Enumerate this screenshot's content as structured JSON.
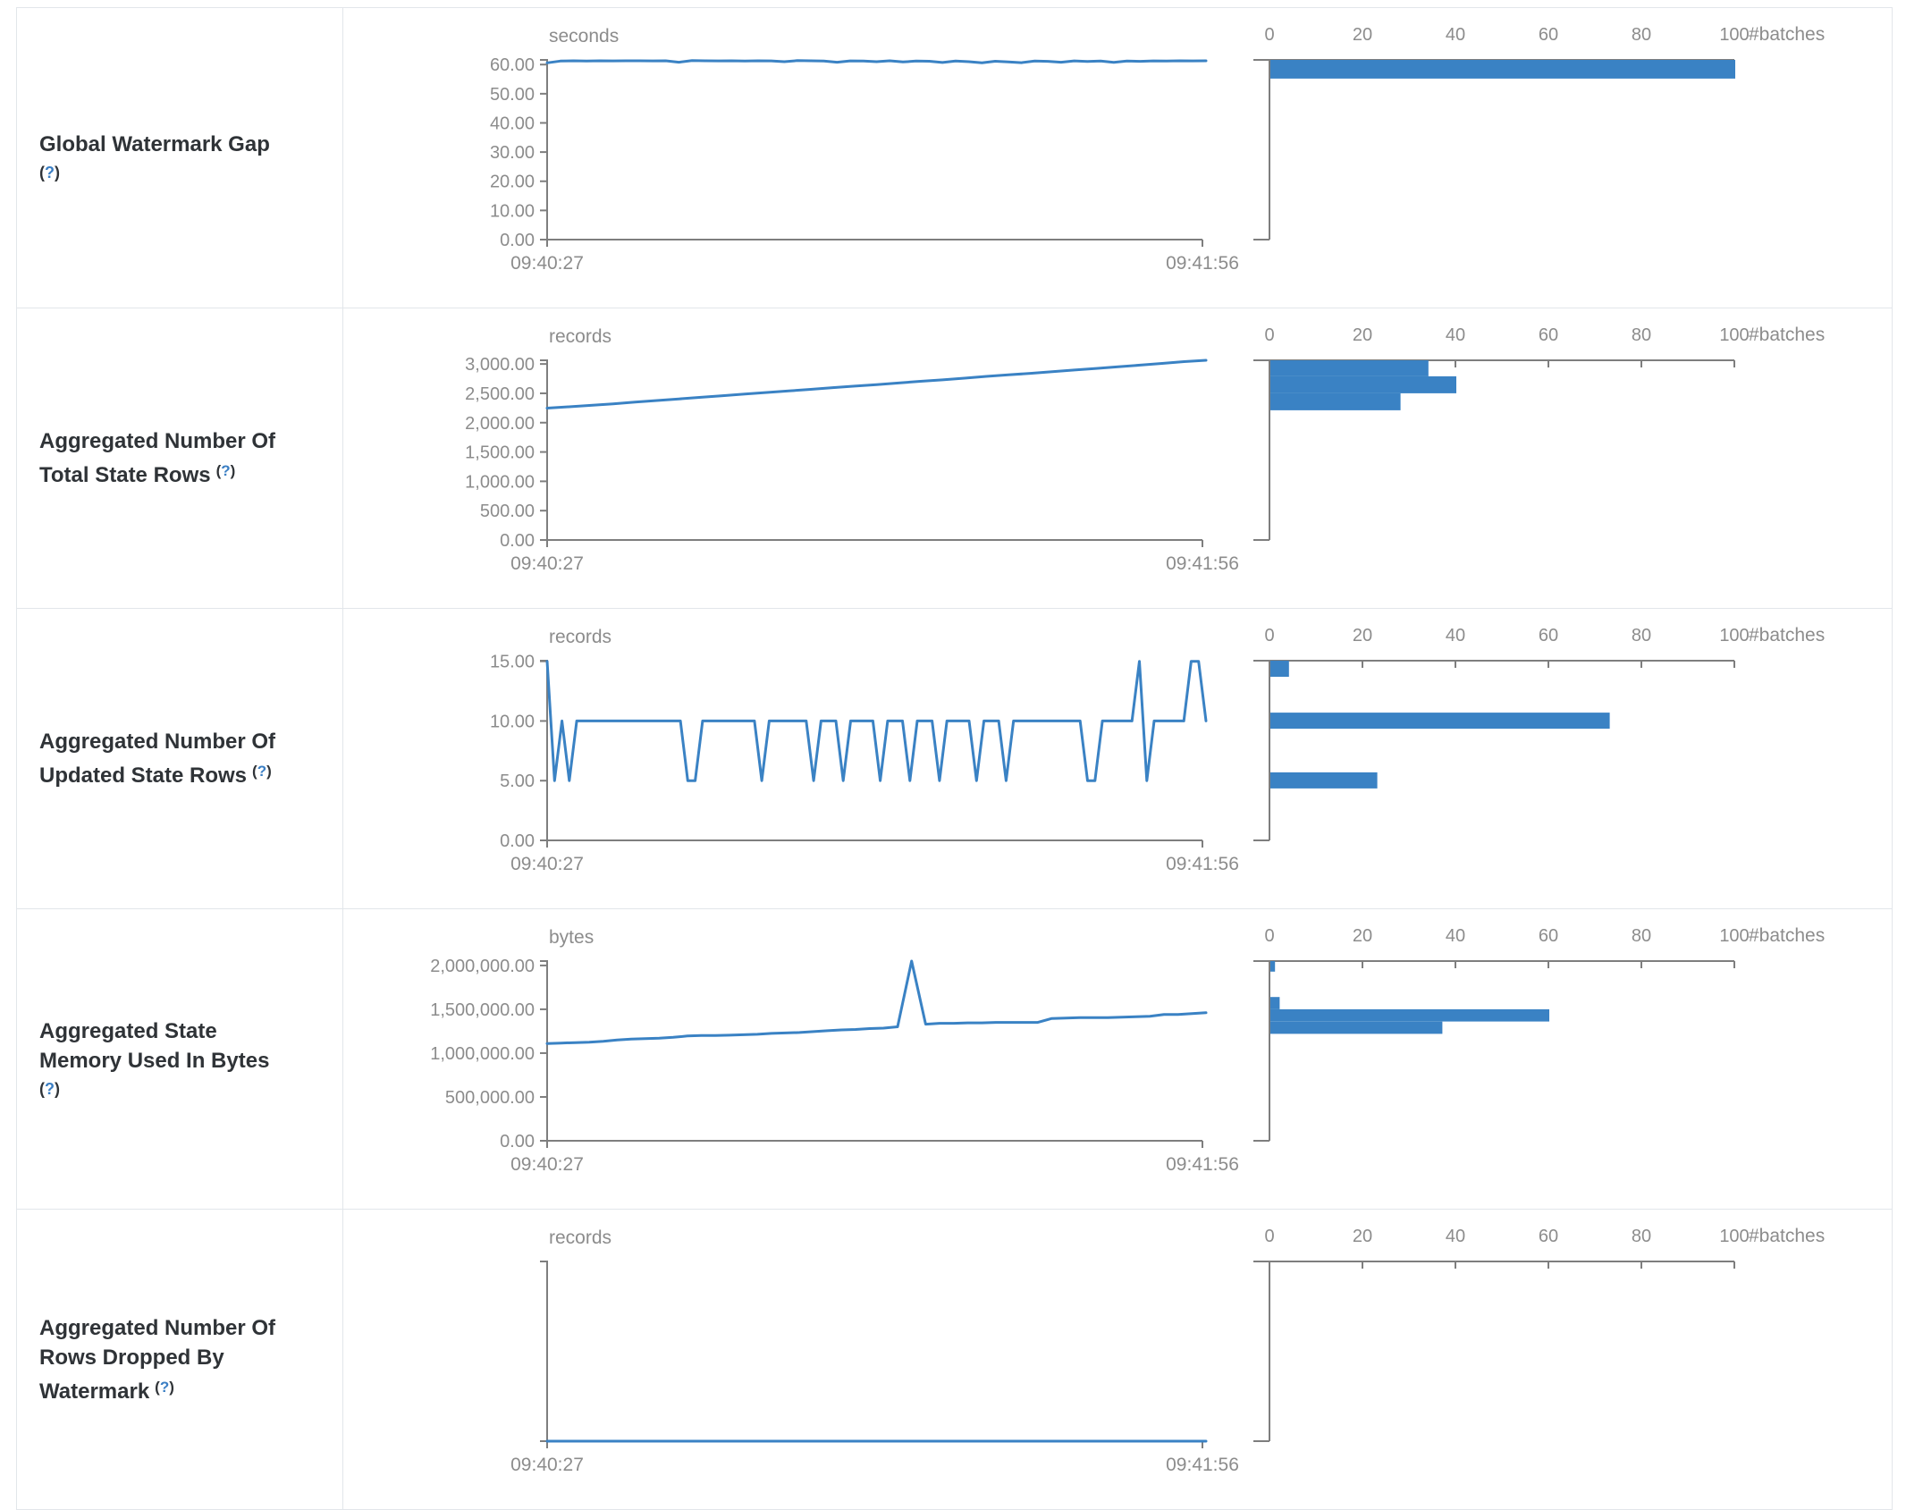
{
  "colors": {
    "accent": "#3a82c4",
    "axis": "#7e7e7e",
    "tick_text": "#8c8c8c",
    "label_text": "#2f3337",
    "help_blue": "#3b7fc4",
    "border": "#e2e6ea"
  },
  "histogram_axis": {
    "ticks": [
      "0",
      "20",
      "40",
      "60",
      "80",
      "100"
    ],
    "tick_values": [
      0,
      20,
      40,
      60,
      80,
      100
    ],
    "unit_label": "#batches",
    "xlim": [
      0,
      100
    ]
  },
  "rows": [
    {
      "label_lines": [
        "Global Watermark Gap"
      ],
      "help_label": "(?)",
      "help_inline": false
    },
    {
      "label_lines": [
        "Aggregated Number Of",
        "Total State Rows"
      ],
      "help_label": "(?)",
      "help_inline": true
    },
    {
      "label_lines": [
        "Aggregated Number Of",
        "Updated State Rows"
      ],
      "help_label": "(?)",
      "help_inline": true
    },
    {
      "label_lines": [
        "Aggregated State",
        "Memory Used In Bytes"
      ],
      "help_label": "(?)",
      "help_inline": false
    },
    {
      "label_lines": [
        "Aggregated Number Of",
        "Rows Dropped By",
        "Watermark"
      ],
      "help_label": "(?)",
      "help_inline": true
    }
  ],
  "chart_data": [
    {
      "metric": "Global Watermark Gap",
      "timeline": {
        "type": "line",
        "unit": "seconds",
        "x_start": "09:40:27",
        "x_end": "09:41:56",
        "ylim": [
          0,
          61.6
        ],
        "yticks": [
          {
            "v": 0,
            "label": "0.00"
          },
          {
            "v": 10,
            "label": "10.00"
          },
          {
            "v": 20,
            "label": "20.00"
          },
          {
            "v": 30,
            "label": "30.00"
          },
          {
            "v": 40,
            "label": "40.00"
          },
          {
            "v": 50,
            "label": "50.00"
          },
          {
            "v": 60,
            "label": "60.00"
          }
        ],
        "values": [
          60.6,
          61.2,
          61.3,
          61.2,
          61.3,
          61.25,
          61.3,
          61.3,
          61.25,
          61.3,
          60.8,
          61.4,
          61.3,
          61.25,
          61.3,
          61.2,
          61.3,
          61.25,
          61.0,
          61.35,
          61.3,
          61.2,
          60.8,
          61.25,
          61.2,
          61.0,
          61.3,
          60.9,
          61.2,
          61.15,
          60.7,
          61.2,
          61.0,
          60.6,
          61.15,
          60.9,
          60.65,
          61.2,
          61.1,
          60.8,
          61.25,
          61.05,
          61.2,
          60.75,
          61.2,
          61.1,
          61.25,
          61.2,
          61.3,
          61.25,
          61.3
        ]
      },
      "histogram": {
        "type": "bar",
        "orientation": "horizontal",
        "unit": "#batches",
        "bars": [
          {
            "bin": [
              55.2,
              61.6
            ],
            "count": 100
          }
        ]
      }
    },
    {
      "metric": "Aggregated Number Of Total State Rows",
      "timeline": {
        "type": "line",
        "unit": "records",
        "x_start": "09:40:27",
        "x_end": "09:41:56",
        "ylim": [
          0,
          3063
        ],
        "yticks": [
          {
            "v": 0,
            "label": "0.00"
          },
          {
            "v": 500,
            "label": "500.00"
          },
          {
            "v": 1000,
            "label": "1,000.00"
          },
          {
            "v": 1500,
            "label": "1,500.00"
          },
          {
            "v": 2000,
            "label": "2,000.00"
          },
          {
            "v": 2500,
            "label": "2,500.00"
          },
          {
            "v": 3000,
            "label": "3,000.00"
          }
        ],
        "values": [
          2248,
          2270,
          2295,
          2321,
          2350,
          2378,
          2405,
          2432,
          2460,
          2489,
          2515,
          2540,
          2568,
          2597,
          2622,
          2648,
          2676,
          2705,
          2730,
          2758,
          2788,
          2815,
          2840,
          2868,
          2897,
          2925,
          2952,
          2980,
          3010,
          3040,
          3063
        ]
      },
      "histogram": {
        "type": "bar",
        "orientation": "horizontal",
        "unit": "#batches",
        "bars": [
          {
            "bin": [
              2790,
              3063
            ],
            "count": 34
          },
          {
            "bin": [
              2500,
              2790
            ],
            "count": 40
          },
          {
            "bin": [
              2210,
              2500
            ],
            "count": 28
          }
        ]
      }
    },
    {
      "metric": "Aggregated Number Of Updated State Rows",
      "timeline": {
        "type": "line",
        "unit": "records",
        "x_start": "09:40:27",
        "x_end": "09:41:56",
        "ylim": [
          0,
          15.05
        ],
        "yticks": [
          {
            "v": 0,
            "label": "0.00"
          },
          {
            "v": 5,
            "label": "5.00"
          },
          {
            "v": 10,
            "label": "10.00"
          },
          {
            "v": 15,
            "label": "15.00"
          }
        ],
        "values": [
          15,
          5,
          10,
          5,
          10,
          10,
          10,
          10,
          10,
          10,
          10,
          10,
          10,
          10,
          10,
          10,
          10,
          10,
          10,
          5,
          5,
          10,
          10,
          10,
          10,
          10,
          10,
          10,
          10,
          5,
          10,
          10,
          10,
          10,
          10,
          10,
          5,
          10,
          10,
          10,
          5,
          10,
          10,
          10,
          10,
          5,
          10,
          10,
          10,
          5,
          10,
          10,
          10,
          5,
          10,
          10,
          10,
          10,
          5,
          10,
          10,
          10,
          5,
          10,
          10,
          10,
          10,
          10,
          10,
          10,
          10,
          10,
          10,
          5,
          5,
          10,
          10,
          10,
          10,
          10,
          15,
          5,
          10,
          10,
          10,
          10,
          10,
          15,
          15,
          10
        ]
      },
      "histogram": {
        "type": "bar",
        "orientation": "horizontal",
        "unit": "#batches",
        "bars": [
          {
            "bin": [
              13.7,
              15.05
            ],
            "count": 4
          },
          {
            "bin": [
              9.35,
              10.7
            ],
            "count": 73
          },
          {
            "bin": [
              4.35,
              5.7
            ],
            "count": 23
          }
        ]
      }
    },
    {
      "metric": "Aggregated State Memory Used In Bytes",
      "timeline": {
        "type": "line",
        "unit": "bytes",
        "x_start": "09:40:27",
        "x_end": "09:41:56",
        "ylim": [
          0,
          2050000
        ],
        "yticks": [
          {
            "v": 0,
            "label": "0.00"
          },
          {
            "v": 500000,
            "label": "500,000.00"
          },
          {
            "v": 1000000,
            "label": "1,000,000.00"
          },
          {
            "v": 1500000,
            "label": "1,500,000.00"
          },
          {
            "v": 2000000,
            "label": "2,000,000.00"
          }
        ],
        "values": [
          1110000,
          1115000,
          1120000,
          1125000,
          1135000,
          1150000,
          1160000,
          1165000,
          1170000,
          1180000,
          1195000,
          1200000,
          1200000,
          1205000,
          1210000,
          1215000,
          1225000,
          1230000,
          1235000,
          1245000,
          1255000,
          1265000,
          1270000,
          1280000,
          1285000,
          1300000,
          2050000,
          1330000,
          1340000,
          1340000,
          1345000,
          1345000,
          1350000,
          1350000,
          1350000,
          1350000,
          1395000,
          1400000,
          1405000,
          1405000,
          1405000,
          1410000,
          1415000,
          1420000,
          1440000,
          1440000,
          1450000,
          1460000
        ]
      },
      "histogram": {
        "type": "bar",
        "orientation": "horizontal",
        "unit": "#batches",
        "bars": [
          {
            "bin": [
              1930000,
              2050000
            ],
            "count": 1
          },
          {
            "bin": [
              1500000,
              1640000
            ],
            "count": 2
          },
          {
            "bin": [
              1360000,
              1500000
            ],
            "count": 60
          },
          {
            "bin": [
              1220000,
              1360000
            ],
            "count": 37
          }
        ]
      }
    },
    {
      "metric": "Aggregated Number Of Rows Dropped By Watermark",
      "timeline": {
        "type": "line",
        "unit": "records",
        "x_start": "09:40:27",
        "x_end": "09:41:56",
        "ylim": [
          0,
          1
        ],
        "yticks": [],
        "values": [
          0,
          0
        ]
      },
      "histogram": {
        "type": "bar",
        "orientation": "horizontal",
        "unit": "#batches",
        "bars": []
      }
    }
  ]
}
